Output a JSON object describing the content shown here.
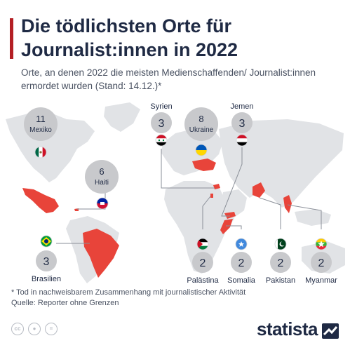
{
  "header": {
    "title": "Die tödlichsten Orte für Journalist:innen in 2022",
    "subtitle": "Orte, an denen 2022 die meisten Medienschaffenden/ Journalist:innen ermordet wurden (Stand: 14.12.)*"
  },
  "colors": {
    "accent": "#b41f24",
    "highlight_country": "#e8443a",
    "land": "#e1e3e6",
    "bubble": "#c8c9cc",
    "text": "#1f2a44"
  },
  "chart_data": {
    "type": "map",
    "title": "Die tödlichsten Orte für Journalist:innen in 2022",
    "subtitle": "Orte, an denen 2022 die meisten Medienschaffenden/ Journalist:innen ermordet wurden (Stand: 14.12.)*",
    "items": [
      {
        "country": "Mexiko",
        "value": 11,
        "flag": "mexico-flag"
      },
      {
        "country": "Ukraine",
        "value": 8,
        "flag": "ukraine-flag"
      },
      {
        "country": "Haiti",
        "value": 6,
        "flag": "haiti-flag"
      },
      {
        "country": "Syrien",
        "value": 3,
        "flag": "syria-flag"
      },
      {
        "country": "Jemen",
        "value": 3,
        "flag": "yemen-flag"
      },
      {
        "country": "Brasilien",
        "value": 3,
        "flag": "brazil-flag"
      },
      {
        "country": "Palästina",
        "value": 2,
        "flag": "palestine-flag"
      },
      {
        "country": "Somalia",
        "value": 2,
        "flag": "somalia-flag"
      },
      {
        "country": "Pakistan",
        "value": 2,
        "flag": "pakistan-flag"
      },
      {
        "country": "Myanmar",
        "value": 2,
        "flag": "myanmar-flag"
      }
    ]
  },
  "footer": {
    "footnote": "* Tod in nachweisbarem Zusammenhang mit journalistischer Aktivität",
    "source": "Quelle: Reporter ohne Grenzen",
    "brand": "statista",
    "license_icons": [
      "cc-icon",
      "person-icon",
      "equals-icon"
    ]
  }
}
